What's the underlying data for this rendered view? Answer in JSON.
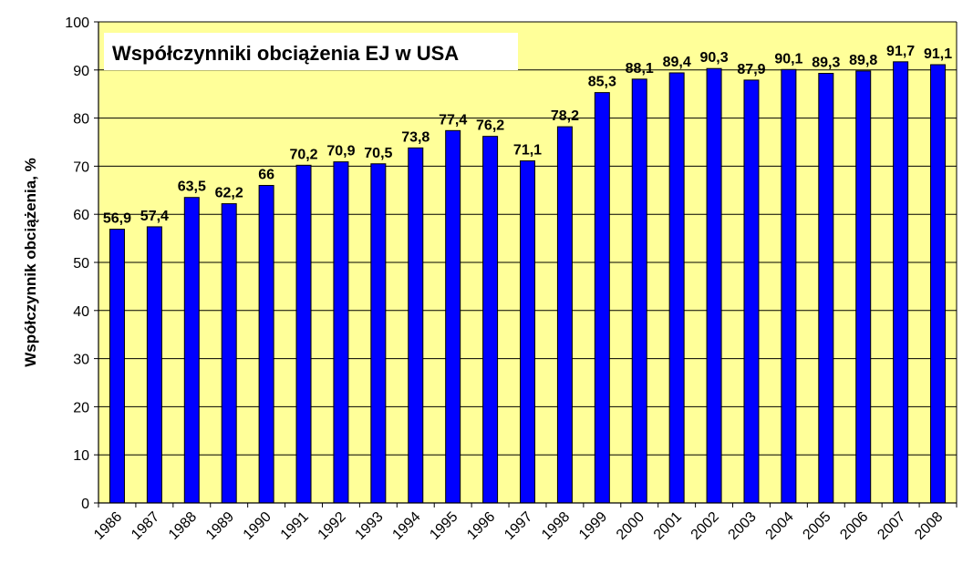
{
  "chart_data": {
    "type": "bar",
    "title": "Współczynniki obciążenia EJ w USA",
    "ylabel": "Współczynnik obciążenia, %",
    "xlabel": "",
    "ylim": [
      0,
      100
    ],
    "yticks": [
      "0",
      "10",
      "20",
      "30",
      "40",
      "50",
      "60",
      "70",
      "80",
      "90",
      "100"
    ],
    "grid": true,
    "colors": {
      "bar": "#0000ff",
      "bar_edge": "#000000",
      "plot_bg": "#ffff99",
      "title_box": "#ffffff"
    },
    "categories": [
      "1986",
      "1987",
      "1988",
      "1989",
      "1990",
      "1991",
      "1992",
      "1993",
      "1994",
      "1995",
      "1996",
      "1997",
      "1998",
      "1999",
      "2000",
      "2001",
      "2002",
      "2003",
      "2004",
      "2005",
      "2006",
      "2007",
      "2008"
    ],
    "values": [
      56.9,
      57.4,
      63.5,
      62.2,
      66,
      70.2,
      70.9,
      70.5,
      73.8,
      77.4,
      76.2,
      71.1,
      78.2,
      85.3,
      88.1,
      89.4,
      90.3,
      87.9,
      90.1,
      89.3,
      89.8,
      91.7,
      91.1
    ],
    "value_labels": [
      "56,9",
      "57,4",
      "63,5",
      "62,2",
      "66",
      "70,2",
      "70,9",
      "70,5",
      "73,8",
      "77,4",
      "76,2",
      "71,1",
      "78,2",
      "85,3",
      "88,1",
      "89,4",
      "90,3",
      "87,9",
      "90,1",
      "89,3",
      "89,8",
      "91,7",
      "91,1"
    ]
  }
}
